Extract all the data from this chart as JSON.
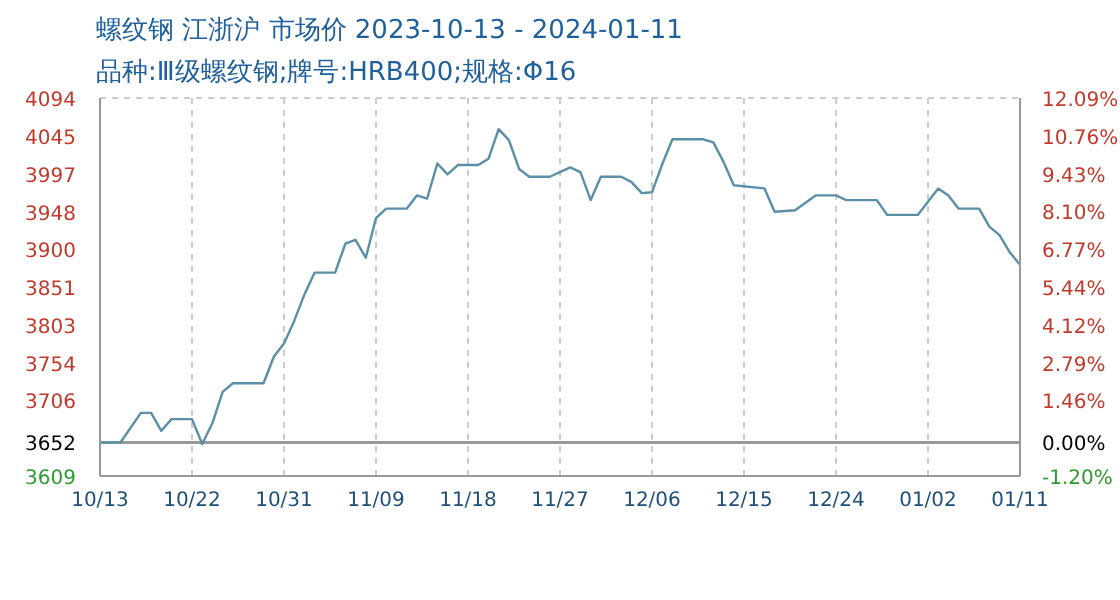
{
  "chart_data": {
    "type": "line",
    "title": "螺纹钢 江浙沪 市场价 2023-10-13 - 2024-01-11",
    "subtitle": "品种:Ⅲ级螺纹钢;牌号:HRB400;规格:Φ16",
    "x": [
      "2023-10-13",
      "2023-10-15",
      "2023-10-17",
      "2023-10-18",
      "2023-10-19",
      "2023-10-20",
      "2023-10-22",
      "2023-10-23",
      "2023-10-24",
      "2023-10-25",
      "2023-10-26",
      "2023-10-29",
      "2023-10-30",
      "2023-10-31",
      "2023-11-01",
      "2023-11-02",
      "2023-11-03",
      "2023-11-05",
      "2023-11-06",
      "2023-11-07",
      "2023-11-08",
      "2023-11-09",
      "2023-11-10",
      "2023-11-12",
      "2023-11-13",
      "2023-11-14",
      "2023-11-15",
      "2023-11-16",
      "2023-11-17",
      "2023-11-19",
      "2023-11-20",
      "2023-11-21",
      "2023-11-22",
      "2023-11-23",
      "2023-11-24",
      "2023-11-26",
      "2023-11-28",
      "2023-11-29",
      "2023-11-30",
      "2023-12-01",
      "2023-12-03",
      "2023-12-04",
      "2023-12-05",
      "2023-12-06",
      "2023-12-07",
      "2023-12-08",
      "2023-12-11",
      "2023-12-12",
      "2023-12-13",
      "2023-12-14",
      "2023-12-17",
      "2023-12-18",
      "2023-12-20",
      "2023-12-22",
      "2023-12-24",
      "2023-12-25",
      "2023-12-28",
      "2023-12-29",
      "2024-01-01",
      "2024-01-02",
      "2024-01-03",
      "2024-01-04",
      "2024-01-05",
      "2024-01-07",
      "2024-01-08",
      "2024-01-09",
      "2024-01-10",
      "2024-01-11"
    ],
    "series": [
      {
        "color": "#5b8fa8",
        "values": [
          3652,
          3652,
          3690,
          3690,
          3667,
          3682,
          3682,
          3650,
          3677,
          3717,
          3728,
          3728,
          3762,
          3779,
          3808,
          3842,
          3870,
          3870,
          3907,
          3912,
          3889,
          3940,
          3952,
          3952,
          3969,
          3965,
          4010,
          3996,
          4008,
          4008,
          4016,
          4054,
          4040,
          4003,
          3993,
          3993,
          4005,
          3999,
          3963,
          3993,
          3993,
          3986,
          3972,
          3973,
          4009,
          4041,
          4041,
          4037,
          4012,
          3982,
          3978,
          3948,
          3950,
          3969,
          3969,
          3963,
          3963,
          3944,
          3944,
          3961,
          3978,
          3969,
          3952,
          3952,
          3929,
          3918,
          3896,
          3880
        ]
      }
    ],
    "xlim": [
      "2023-10-13",
      "2024-01-11"
    ],
    "xticks": [
      {
        "value": "2023-10-13",
        "label": "10/13"
      },
      {
        "value": "2023-10-22",
        "label": "10/22"
      },
      {
        "value": "2023-10-31",
        "label": "10/31"
      },
      {
        "value": "2023-11-09",
        "label": "11/09"
      },
      {
        "value": "2023-11-18",
        "label": "11/18"
      },
      {
        "value": "2023-11-27",
        "label": "11/27"
      },
      {
        "value": "2023-12-06",
        "label": "12/06"
      },
      {
        "value": "2023-12-15",
        "label": "12/15"
      },
      {
        "value": "2023-12-24",
        "label": "12/24"
      },
      {
        "value": "2024-01-02",
        "label": "01/02"
      },
      {
        "value": "2024-01-11",
        "label": "01/11"
      }
    ],
    "ylim": [
      3609,
      4094
    ],
    "yticks": [
      3609,
      3652,
      3706,
      3754,
      3803,
      3851,
      3900,
      3948,
      3997,
      4045,
      4094
    ],
    "y2lim": [
      -1.2,
      12.09
    ],
    "y2ticks": [
      {
        "value": -1.2,
        "label": "-1.20%"
      },
      {
        "value": 0,
        "label": "0.00%"
      },
      {
        "value": 1.46,
        "label": "1.46%"
      },
      {
        "value": 2.79,
        "label": "2.79%"
      },
      {
        "value": 4.12,
        "label": "4.12%"
      },
      {
        "value": 5.44,
        "label": "5.44%"
      },
      {
        "value": 6.77,
        "label": "6.77%"
      },
      {
        "value": 8.1,
        "label": "8.10%"
      },
      {
        "value": 9.43,
        "label": "9.43%"
      },
      {
        "value": 10.76,
        "label": "10.76%"
      },
      {
        "value": 12.09,
        "label": "12.09%"
      }
    ],
    "ref_lines": [
      {
        "axis": "y",
        "value": 3652,
        "color": "#999999"
      }
    ],
    "grid": true,
    "marker": "none",
    "line_style": "solid"
  }
}
